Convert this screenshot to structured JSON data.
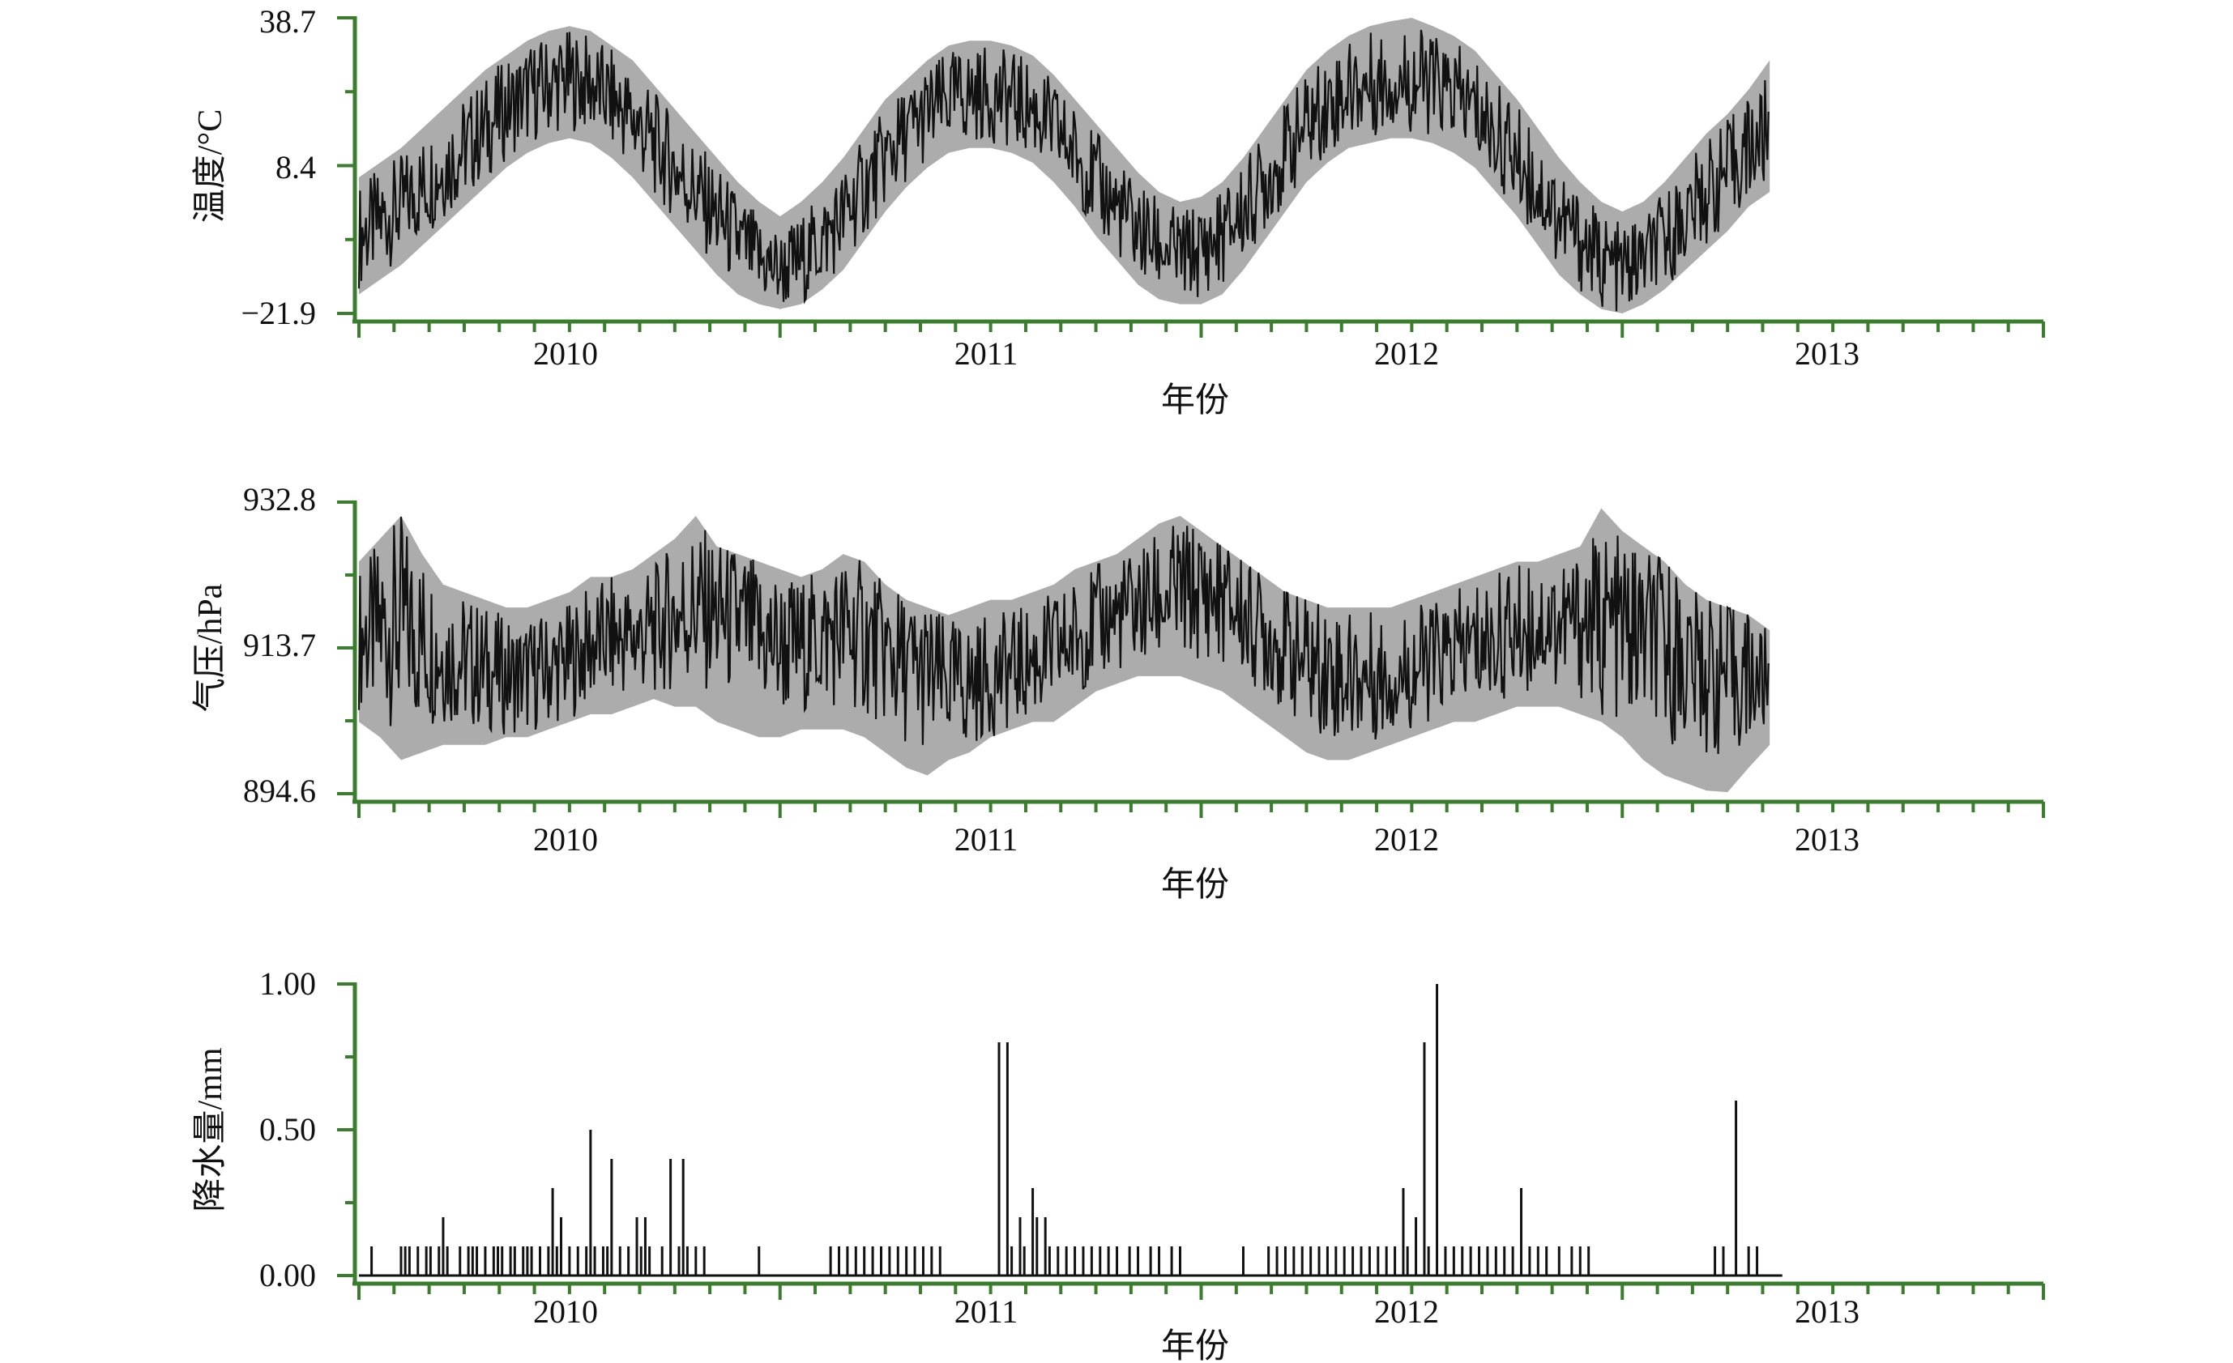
{
  "figure": {
    "axis_color": "#3a7d2c",
    "line_color": "#111111"
  },
  "chart_data": [
    {
      "type": "line",
      "ylabel": "温度/°C",
      "xlabel": "年份",
      "ylim": [
        -21.9,
        38.7
      ],
      "yticks": [
        "38.7",
        "8.4",
        "−21.9"
      ],
      "xlim": [
        2009.5,
        2013.5
      ],
      "xticks": [
        "2010",
        "2011",
        "2012",
        "2013"
      ],
      "series": [
        {
          "x": [
            2009.5,
            2009.55,
            2009.6,
            2009.65,
            2009.7,
            2009.75,
            2009.8,
            2009.85,
            2009.9,
            2009.95,
            2010.0,
            2010.05,
            2010.1,
            2010.15,
            2010.2,
            2010.25,
            2010.3,
            2010.35,
            2010.4,
            2010.45,
            2010.5,
            2010.55,
            2010.6,
            2010.65,
            2010.7,
            2010.75,
            2010.8,
            2010.85,
            2010.9,
            2010.95,
            2011.0,
            2011.05,
            2011.1,
            2011.15,
            2011.2,
            2011.25,
            2011.3,
            2011.35,
            2011.4,
            2011.45,
            2011.5,
            2011.55,
            2011.6,
            2011.65,
            2011.7,
            2011.75,
            2011.8,
            2011.85,
            2011.9,
            2011.95,
            2012.0,
            2012.05,
            2012.1,
            2012.15,
            2012.2,
            2012.25,
            2012.3,
            2012.35,
            2012.4,
            2012.45,
            2012.5,
            2012.55,
            2012.6,
            2012.65,
            2012.7,
            2012.75,
            2012.8,
            2012.85
          ],
          "y": [
            -6,
            -3,
            0,
            4,
            8,
            12,
            16,
            20,
            23,
            25,
            26,
            25,
            22,
            18,
            13,
            8,
            3,
            -2,
            -7,
            -11,
            -13,
            -11,
            -7,
            -2,
            4,
            10,
            15,
            19,
            22,
            23,
            23,
            22,
            20,
            16,
            11,
            5,
            0,
            -5,
            -8,
            -10,
            -9,
            -6,
            -1,
            5,
            11,
            17,
            21,
            24,
            25,
            26,
            26,
            25,
            23,
            20,
            15,
            10,
            4,
            -2,
            -7,
            -11,
            -13,
            -11,
            -7,
            -2,
            3,
            7,
            12,
            15
          ],
          "min": [
            -18,
            -15,
            -12,
            -8,
            -4,
            0,
            4,
            8,
            11,
            13,
            14,
            13,
            10,
            6,
            1,
            -4,
            -9,
            -14,
            -18,
            -20,
            -21,
            -20,
            -17,
            -13,
            -7,
            -1,
            4,
            8,
            11,
            12,
            12,
            11,
            9,
            5,
            0,
            -6,
            -11,
            -16,
            -19,
            -20,
            -20,
            -18,
            -13,
            -7,
            -1,
            5,
            9,
            12,
            13,
            14,
            14,
            13,
            11,
            8,
            3,
            -2,
            -8,
            -14,
            -18,
            -21,
            -21.9,
            -20,
            -17,
            -13,
            -9,
            -5,
            0,
            3
          ],
          "max": [
            6,
            9,
            12,
            16,
            20,
            24,
            28,
            31,
            34,
            36,
            37,
            36,
            33,
            30,
            25,
            20,
            15,
            10,
            5,
            1,
            -2,
            1,
            5,
            10,
            16,
            22,
            26,
            30,
            33,
            34,
            34,
            33,
            31,
            27,
            22,
            17,
            12,
            7,
            3,
            1,
            2,
            5,
            10,
            16,
            22,
            28,
            32,
            35,
            37,
            38,
            38.7,
            37,
            35,
            32,
            27,
            22,
            16,
            10,
            5,
            1,
            -1,
            1,
            5,
            10,
            15,
            19,
            24,
            30
          ]
        }
      ]
    },
    {
      "type": "line",
      "ylabel": "气压/hPa",
      "xlabel": "年份",
      "ylim": [
        894.6,
        932.8
      ],
      "yticks": [
        "932.8",
        "913.7",
        "894.6"
      ],
      "xlim": [
        2009.5,
        2013.5
      ],
      "xticks": [
        "2010",
        "2011",
        "2012",
        "2013"
      ],
      "series": [
        {
          "x": [
            2009.5,
            2009.55,
            2009.6,
            2009.65,
            2009.7,
            2009.75,
            2009.8,
            2009.85,
            2009.9,
            2009.95,
            2010.0,
            2010.05,
            2010.1,
            2010.15,
            2010.2,
            2010.25,
            2010.3,
            2010.35,
            2010.4,
            2010.45,
            2010.5,
            2010.55,
            2010.6,
            2010.65,
            2010.7,
            2010.75,
            2010.8,
            2010.85,
            2010.9,
            2010.95,
            2011.0,
            2011.05,
            2011.1,
            2011.15,
            2011.2,
            2011.25,
            2011.3,
            2011.35,
            2011.4,
            2011.45,
            2011.5,
            2011.55,
            2011.6,
            2011.65,
            2011.7,
            2011.75,
            2011.8,
            2011.85,
            2011.9,
            2011.95,
            2012.0,
            2012.05,
            2012.1,
            2012.15,
            2012.2,
            2012.25,
            2012.3,
            2012.35,
            2012.4,
            2012.45,
            2012.5,
            2012.55,
            2012.6,
            2012.65,
            2012.7,
            2012.75,
            2012.8,
            2012.85
          ],
          "y": [
            915,
            916,
            917,
            915,
            913,
            912,
            911,
            910,
            910,
            911,
            912,
            914,
            915,
            915,
            916,
            918,
            919,
            918,
            917,
            915,
            914,
            914,
            915,
            916,
            915,
            913,
            911,
            910,
            909,
            909,
            910,
            911,
            912,
            913,
            915,
            917,
            918,
            919,
            920,
            921,
            921,
            920,
            918,
            916,
            914,
            912,
            911,
            910,
            910,
            910,
            911,
            912,
            913,
            914,
            915,
            916,
            917,
            917,
            917,
            917,
            916,
            915,
            914,
            912,
            911,
            910,
            910,
            909
          ],
          "min": [
            904,
            902,
            899,
            900,
            901,
            901,
            901,
            902,
            902,
            903,
            904,
            905,
            905,
            906,
            907,
            906,
            906,
            904,
            903,
            902,
            902,
            903,
            903,
            903,
            902,
            900,
            898,
            897,
            899,
            900,
            902,
            903,
            904,
            904,
            906,
            908,
            909,
            910,
            910,
            910,
            909,
            908,
            906,
            904,
            902,
            900,
            899,
            899,
            900,
            901,
            902,
            903,
            904,
            904,
            905,
            906,
            906,
            906,
            905,
            904,
            902,
            899,
            897,
            896,
            895,
            894.8,
            898,
            901
          ],
          "max": [
            925,
            928,
            931,
            926,
            922,
            921,
            920,
            919,
            919,
            920,
            921,
            923,
            923,
            924,
            926,
            928,
            931,
            927,
            926,
            925,
            924,
            923,
            924,
            926,
            925,
            922,
            920,
            919,
            918,
            919,
            920,
            920,
            921,
            922,
            924,
            925,
            926,
            928,
            930,
            931,
            929,
            927,
            925,
            923,
            921,
            920,
            919,
            919,
            919,
            919,
            920,
            921,
            922,
            923,
            924,
            925,
            925,
            926,
            927,
            932,
            929,
            927,
            925,
            922,
            920,
            919,
            918,
            916
          ]
        }
      ]
    },
    {
      "type": "bar",
      "ylabel": "降水量/mm",
      "xlabel": "年份",
      "ylim": [
        0.0,
        1.0
      ],
      "yticks": [
        "1.00",
        "0.50",
        "0.00"
      ],
      "xlim": [
        2009.5,
        2013.5
      ],
      "xticks": [
        "2010",
        "2011",
        "2012",
        "2013"
      ],
      "series": [
        {
          "x": [
            2009.53,
            2009.6,
            2009.61,
            2009.62,
            2009.64,
            2009.66,
            2009.67,
            2009.69,
            2009.7,
            2009.71,
            2009.74,
            2009.76,
            2009.77,
            2009.78,
            2009.8,
            2009.82,
            2009.83,
            2009.84,
            2009.86,
            2009.87,
            2009.89,
            2009.9,
            2009.91,
            2009.93,
            2009.95,
            2009.96,
            2009.97,
            2009.98,
            2010.0,
            2010.02,
            2010.04,
            2010.05,
            2010.06,
            2010.08,
            2010.09,
            2010.1,
            2010.12,
            2010.14,
            2010.16,
            2010.17,
            2010.18,
            2010.19,
            2010.22,
            2010.24,
            2010.26,
            2010.27,
            2010.28,
            2010.3,
            2010.32,
            2010.45,
            2010.62,
            2010.64,
            2010.66,
            2010.68,
            2010.7,
            2010.72,
            2010.74,
            2010.76,
            2010.78,
            2010.8,
            2010.82,
            2010.84,
            2010.86,
            2010.88,
            2011.02,
            2011.04,
            2011.05,
            2011.07,
            2011.08,
            2011.1,
            2011.11,
            2011.13,
            2011.14,
            2011.16,
            2011.18,
            2011.2,
            2011.22,
            2011.24,
            2011.26,
            2011.28,
            2011.3,
            2011.33,
            2011.35,
            2011.38,
            2011.4,
            2011.43,
            2011.45,
            2011.6,
            2011.66,
            2011.68,
            2011.7,
            2011.72,
            2011.74,
            2011.76,
            2011.78,
            2011.8,
            2011.82,
            2011.84,
            2011.86,
            2011.88,
            2011.9,
            2011.92,
            2011.94,
            2011.96,
            2011.98,
            2011.99,
            2012.01,
            2012.03,
            2012.04,
            2012.06,
            2012.08,
            2012.1,
            2012.12,
            2012.14,
            2012.16,
            2012.18,
            2012.2,
            2012.22,
            2012.24,
            2012.26,
            2012.28,
            2012.3,
            2012.32,
            2012.35,
            2012.38,
            2012.4,
            2012.42,
            2012.72,
            2012.74,
            2012.77,
            2012.8,
            2012.82
          ],
          "values": [
            0.1,
            0.1,
            0.1,
            0.1,
            0.1,
            0.1,
            0.1,
            0.1,
            0.2,
            0.1,
            0.1,
            0.1,
            0.1,
            0.1,
            0.1,
            0.1,
            0.1,
            0.1,
            0.1,
            0.1,
            0.1,
            0.1,
            0.1,
            0.1,
            0.1,
            0.3,
            0.1,
            0.2,
            0.1,
            0.1,
            0.1,
            0.5,
            0.1,
            0.1,
            0.1,
            0.4,
            0.1,
            0.1,
            0.2,
            0.1,
            0.2,
            0.1,
            0.1,
            0.4,
            0.1,
            0.4,
            0.1,
            0.1,
            0.1,
            0.1,
            0.1,
            0.1,
            0.1,
            0.1,
            0.1,
            0.1,
            0.1,
            0.1,
            0.1,
            0.1,
            0.1,
            0.1,
            0.1,
            0.1,
            0.8,
            0.8,
            0.1,
            0.2,
            0.1,
            0.3,
            0.2,
            0.2,
            0.1,
            0.1,
            0.1,
            0.1,
            0.1,
            0.1,
            0.1,
            0.1,
            0.1,
            0.1,
            0.1,
            0.1,
            0.1,
            0.1,
            0.1,
            0.1,
            0.1,
            0.1,
            0.1,
            0.1,
            0.1,
            0.1,
            0.1,
            0.1,
            0.1,
            0.1,
            0.1,
            0.1,
            0.1,
            0.1,
            0.1,
            0.1,
            0.3,
            0.1,
            0.2,
            0.8,
            0.1,
            1.0,
            0.1,
            0.1,
            0.1,
            0.1,
            0.1,
            0.1,
            0.1,
            0.1,
            0.1,
            0.3,
            0.1,
            0.1,
            0.1,
            0.1,
            0.1,
            0.1,
            0.1,
            0.1,
            0.1,
            0.6,
            0.1,
            0.1
          ]
        }
      ]
    }
  ]
}
